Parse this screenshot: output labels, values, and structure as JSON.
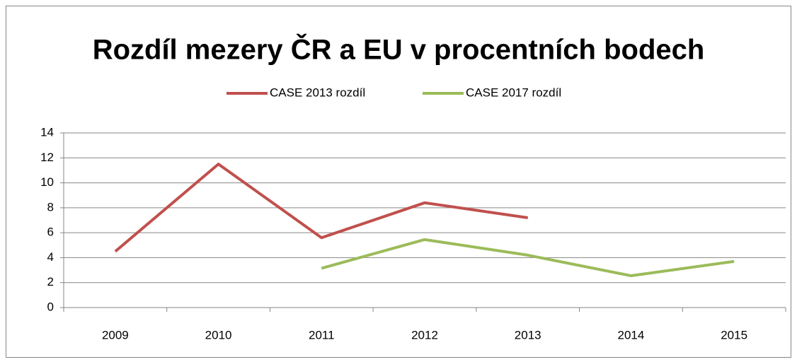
{
  "chart_data": {
    "type": "line",
    "title": "Rozdíl mezery ČR a EU v procentních bodech",
    "categories": [
      "2009",
      "2010",
      "2011",
      "2012",
      "2013",
      "2014",
      "2015"
    ],
    "series": [
      {
        "name": "CASE 2013 rozdíl",
        "color": "#c0504d",
        "values": [
          4.5,
          11.5,
          5.6,
          8.4,
          7.2,
          null,
          null
        ]
      },
      {
        "name": "CASE 2017 rozdíl",
        "color": "#9bbb59",
        "values": [
          null,
          null,
          3.15,
          5.45,
          4.2,
          2.55,
          3.7
        ]
      }
    ],
    "ylim": [
      0,
      14
    ],
    "yticks": [
      0,
      2,
      4,
      6,
      8,
      10,
      12,
      14
    ],
    "grid": true,
    "legend": "top"
  }
}
